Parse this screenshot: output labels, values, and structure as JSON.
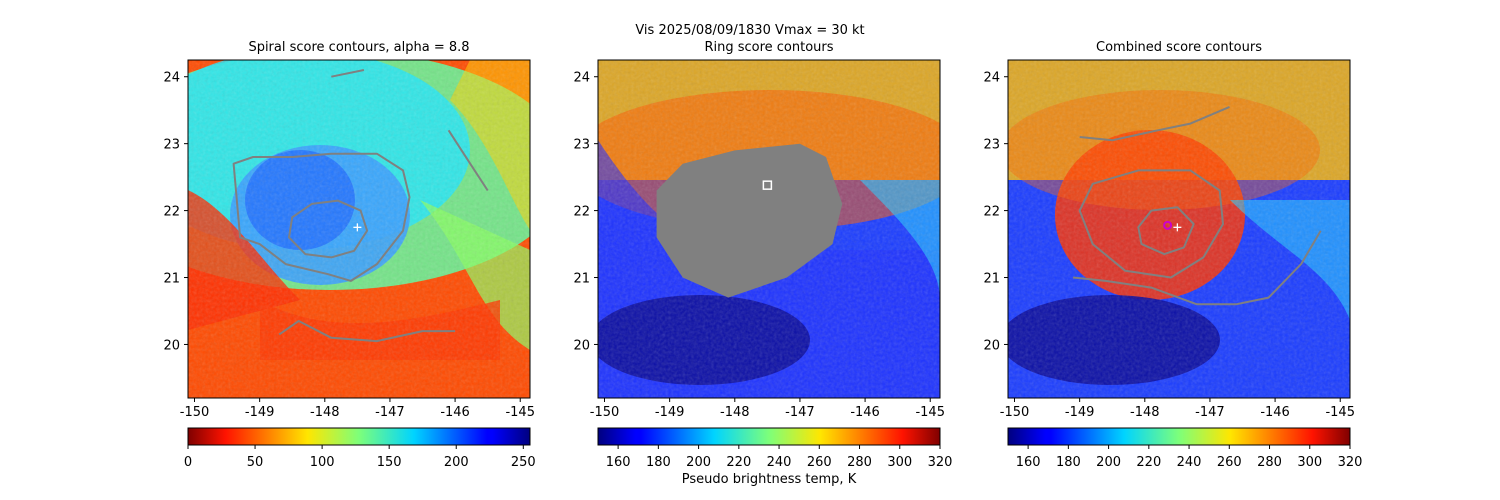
{
  "figure": {
    "suptitle_line1": "Vis  2025/08/09/1830    Vmax = 30 kt",
    "xlabel_shared": "Pseudo brightness temp, K"
  },
  "chart_data": [
    {
      "type": "heatmap",
      "title": "Spiral score contours, alpha =  8.8",
      "xlabel": "",
      "ylabel": "",
      "xlim": [
        -150.1,
        -144.85
      ],
      "ylim": [
        19.2,
        24.25
      ],
      "xticks": [
        "-150",
        "-149",
        "-148",
        "-147",
        "-146",
        "-145"
      ],
      "xtick_values": [
        -150,
        -149,
        -148,
        -147,
        -146,
        -145
      ],
      "yticks": [
        "20",
        "21",
        "22",
        "23",
        "24"
      ],
      "ytick_values": [
        20,
        21,
        22,
        23,
        24
      ],
      "colormap": "jet_r",
      "colorbar": {
        "vmin": 0,
        "vmax": 255,
        "ticks": [
          "0",
          "50",
          "100",
          "150",
          "200",
          "250"
        ],
        "tick_values": [
          0,
          50,
          100,
          150,
          200,
          250
        ]
      },
      "marker": {
        "type": "plus",
        "lon": -147.5,
        "lat": 21.75,
        "color": "#ffffff"
      },
      "contours": [
        {
          "name": "inner",
          "color": "#808080",
          "points": [
            [
              -148.55,
              21.6
            ],
            [
              -148.5,
              21.9
            ],
            [
              -148.2,
              22.1
            ],
            [
              -147.8,
              22.15
            ],
            [
              -147.45,
              22.0
            ],
            [
              -147.35,
              21.7
            ],
            [
              -147.55,
              21.4
            ],
            [
              -147.9,
              21.3
            ],
            [
              -148.3,
              21.35
            ]
          ]
        },
        {
          "name": "outer",
          "color": "#808080",
          "points": [
            [
              -149.4,
              22.7
            ],
            [
              -149.1,
              22.8
            ],
            [
              -148.5,
              22.8
            ],
            [
              -147.9,
              22.85
            ],
            [
              -147.2,
              22.85
            ],
            [
              -146.8,
              22.6
            ],
            [
              -146.7,
              22.2
            ],
            [
              -146.8,
              21.7
            ],
            [
              -147.2,
              21.2
            ],
            [
              -147.6,
              20.95
            ],
            [
              -147.95,
              21.05
            ],
            [
              -148.6,
              21.2
            ],
            [
              -149.0,
              21.5
            ],
            [
              -149.3,
              21.6
            ]
          ]
        },
        {
          "name": "south",
          "color": "#808080",
          "points": [
            [
              -148.7,
              20.15
            ],
            [
              -148.4,
              20.35
            ],
            [
              -147.9,
              20.1
            ],
            [
              -147.2,
              20.05
            ],
            [
              -146.5,
              20.2
            ],
            [
              -146.0,
              20.2
            ]
          ]
        },
        {
          "name": "north",
          "color": "#808080",
          "points": [
            [
              -147.9,
              24.0
            ],
            [
              -147.4,
              24.1
            ]
          ]
        },
        {
          "name": "east",
          "color": "#808080",
          "points": [
            [
              -146.1,
              23.2
            ],
            [
              -145.9,
              22.9
            ],
            [
              -145.7,
              22.6
            ],
            [
              -145.5,
              22.3
            ]
          ]
        }
      ]
    },
    {
      "type": "heatmap",
      "title": "Ring score contours",
      "xlabel": "Pseudo brightness temp, K",
      "ylabel": "",
      "xlim": [
        -150.1,
        -144.85
      ],
      "ylim": [
        19.2,
        24.25
      ],
      "xticks": [
        "-150",
        "-149",
        "-148",
        "-147",
        "-146",
        "-145"
      ],
      "xtick_values": [
        -150,
        -149,
        -148,
        -147,
        -146,
        -145
      ],
      "yticks": [
        "20",
        "21",
        "22",
        "23",
        "24"
      ],
      "ytick_values": [
        20,
        21,
        22,
        23,
        24
      ],
      "colormap": "jet",
      "colorbar": {
        "vmin": 150,
        "vmax": 320,
        "ticks": [
          "160",
          "180",
          "200",
          "220",
          "240",
          "260",
          "280",
          "300",
          "320"
        ],
        "tick_values": [
          160,
          180,
          200,
          220,
          240,
          260,
          280,
          300,
          320
        ]
      },
      "marker": {
        "type": "square",
        "lon": -147.5,
        "lat": 22.38,
        "color": "#ffffff"
      },
      "masked_region": {
        "color": "#808080",
        "points": [
          [
            -149.2,
            22.3
          ],
          [
            -148.8,
            22.7
          ],
          [
            -148.0,
            22.9
          ],
          [
            -147.0,
            23.0
          ],
          [
            -146.6,
            22.8
          ],
          [
            -146.35,
            22.1
          ],
          [
            -146.5,
            21.5
          ],
          [
            -147.2,
            21.0
          ],
          [
            -148.1,
            20.7
          ],
          [
            -148.8,
            21.0
          ],
          [
            -149.2,
            21.6
          ]
        ]
      }
    },
    {
      "type": "heatmap",
      "title": "Combined score contours",
      "xlabel": "",
      "ylabel": "",
      "xlim": [
        -150.1,
        -144.85
      ],
      "ylim": [
        19.2,
        24.25
      ],
      "xticks": [
        "-150",
        "-149",
        "-148",
        "-147",
        "-146",
        "-145"
      ],
      "xtick_values": [
        -150,
        -149,
        -148,
        -147,
        -146,
        -145
      ],
      "yticks": [
        "20",
        "21",
        "22",
        "23",
        "24"
      ],
      "ytick_values": [
        20,
        21,
        22,
        23,
        24
      ],
      "colormap": "jet",
      "colorbar": {
        "vmin": 150,
        "vmax": 320,
        "ticks": [
          "160",
          "180",
          "200",
          "220",
          "240",
          "260",
          "280",
          "300",
          "320"
        ],
        "tick_values": [
          160,
          180,
          200,
          220,
          240,
          260,
          280,
          300,
          320
        ]
      },
      "marker": {
        "type": "circle",
        "lon": -147.65,
        "lat": 21.78,
        "color": "#cc00cc"
      },
      "marker2": {
        "type": "plus",
        "lon": -147.5,
        "lat": 21.75,
        "color": "#ffffff"
      },
      "contours": [
        {
          "name": "inner",
          "color": "#808080",
          "points": [
            [
              -147.9,
              22.0
            ],
            [
              -147.5,
              22.05
            ],
            [
              -147.25,
              21.8
            ],
            [
              -147.4,
              21.45
            ],
            [
              -147.7,
              21.35
            ],
            [
              -148.05,
              21.5
            ],
            [
              -148.1,
              21.75
            ]
          ]
        },
        {
          "name": "outer",
          "color": "#808080",
          "points": [
            [
              -148.8,
              22.4
            ],
            [
              -148.1,
              22.6
            ],
            [
              -147.3,
              22.6
            ],
            [
              -146.85,
              22.3
            ],
            [
              -146.8,
              21.8
            ],
            [
              -147.1,
              21.3
            ],
            [
              -147.6,
              21.0
            ],
            [
              -148.3,
              21.1
            ],
            [
              -148.8,
              21.5
            ],
            [
              -149.0,
              22.0
            ]
          ]
        },
        {
          "name": "north",
          "color": "#808080",
          "points": [
            [
              -149.0,
              23.1
            ],
            [
              -148.5,
              23.05
            ],
            [
              -147.8,
              23.2
            ],
            [
              -147.3,
              23.3
            ],
            [
              -146.7,
              23.55
            ]
          ]
        },
        {
          "name": "south",
          "color": "#808080",
          "points": [
            [
              -149.1,
              21.0
            ],
            [
              -148.6,
              20.95
            ],
            [
              -147.9,
              20.85
            ],
            [
              -147.2,
              20.6
            ],
            [
              -146.6,
              20.6
            ],
            [
              -146.1,
              20.7
            ],
            [
              -145.6,
              21.2
            ],
            [
              -145.3,
              21.7
            ]
          ]
        }
      ]
    }
  ]
}
